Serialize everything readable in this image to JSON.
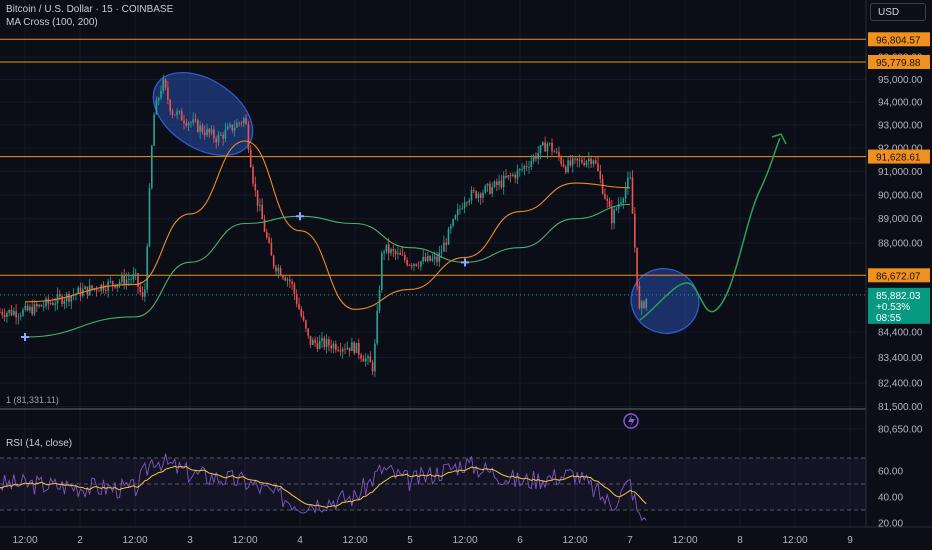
{
  "header": {
    "symbol_line": "Bitcoin / U.S. Dollar · 15 · COINBASE",
    "indicator_line": "MA Cross (100, 200)",
    "currency_button": "USD",
    "low_marker": "1 (81,331.11)",
    "rsi_label": "RSI (14, close)"
  },
  "colors": {
    "background": "#0b0e17",
    "up": "#26a69a",
    "down": "#ef5350",
    "level_line": "#f0901e",
    "ma100": "#f08a24",
    "ma200": "#4caf73",
    "rsi": "#7e57c2",
    "rsi_ma": "#f5c542",
    "ellipse": "#2f5cc9",
    "projection": "#2e9e5b",
    "price_tag": "#089981"
  },
  "chart_data": [
    {
      "type": "candlestick",
      "title": "Bitcoin / U.S. Dollar · 15 · COINBASE",
      "x_tick_labels": [
        "12:00",
        "2",
        "12:00",
        "3",
        "12:00",
        "4",
        "12:00",
        "5",
        "12:00",
        "6",
        "12:00",
        "7",
        "12:00",
        "8",
        "12:00",
        "9"
      ],
      "y_tick_labels": [
        "96,000.00",
        "95,000.00",
        "94,000.00",
        "93,000.00",
        "92,000.00",
        "91,000.00",
        "90,000.00",
        "89,000.00",
        "88,000.00",
        "84,400.00",
        "83,400.00",
        "82,400.00",
        "81,500.00",
        "80,650.00"
      ],
      "y_scale": "log",
      "ylim": [
        80650,
        97500
      ],
      "key_points": [
        {
          "x": "1 12:00",
          "y": 85200
        },
        {
          "x": "2",
          "y": 86000
        },
        {
          "x": "2 12:00",
          "y": 86600
        },
        {
          "x": "2 14:00",
          "y": 85500
        },
        {
          "x": "2 16:00",
          "y": 93300
        },
        {
          "x": "2 18:00",
          "y": 94900
        },
        {
          "x": "2 20:00",
          "y": 93600
        },
        {
          "x": "3 06:00",
          "y": 92400
        },
        {
          "x": "3 12:00",
          "y": 93300
        },
        {
          "x": "3 14:00",
          "y": 90300
        },
        {
          "x": "3 18:00",
          "y": 87200
        },
        {
          "x": "3 22:00",
          "y": 86400
        },
        {
          "x": "4 02:00",
          "y": 84000
        },
        {
          "x": "4 12:00",
          "y": 83800
        },
        {
          "x": "4 16:00",
          "y": 83000
        },
        {
          "x": "4 18:00",
          "y": 87800
        },
        {
          "x": "5",
          "y": 87200
        },
        {
          "x": "5 06:00",
          "y": 87300
        },
        {
          "x": "5 12:00",
          "y": 89900
        },
        {
          "x": "5 18:00",
          "y": 90300
        },
        {
          "x": "6",
          "y": 91000
        },
        {
          "x": "6 06:00",
          "y": 92200
        },
        {
          "x": "6 10:00",
          "y": 91200
        },
        {
          "x": "6 16:00",
          "y": 91600
        },
        {
          "x": "6 20:00",
          "y": 89000
        },
        {
          "x": "7",
          "y": 90700
        },
        {
          "x": "7 02:00",
          "y": 85200
        },
        {
          "x": "7 04:00",
          "y": 85882.03
        }
      ],
      "series": [
        {
          "name": "MA 100",
          "key_points": [
            {
              "x": "1 12:00",
              "y": 85600
            },
            {
              "x": "2 12:00",
              "y": 86300
            },
            {
              "x": "3",
              "y": 89200
            },
            {
              "x": "3 12:00",
              "y": 92300
            },
            {
              "x": "4",
              "y": 88500
            },
            {
              "x": "4 12:00",
              "y": 85300
            },
            {
              "x": "5",
              "y": 86100
            },
            {
              "x": "5 12:00",
              "y": 87400
            },
            {
              "x": "6",
              "y": 89300
            },
            {
              "x": "6 12:00",
              "y": 90500
            },
            {
              "x": "7",
              "y": 90300
            }
          ]
        },
        {
          "name": "MA 200",
          "key_points": [
            {
              "x": "1 12:00",
              "y": 84200
            },
            {
              "x": "2 12:00",
              "y": 85000
            },
            {
              "x": "3",
              "y": 87200
            },
            {
              "x": "3 12:00",
              "y": 88800
            },
            {
              "x": "4",
              "y": 89100
            },
            {
              "x": "4 12:00",
              "y": 88800
            },
            {
              "x": "5",
              "y": 87800
            },
            {
              "x": "5 12:00",
              "y": 87200
            },
            {
              "x": "6",
              "y": 87800
            },
            {
              "x": "6 12:00",
              "y": 89000
            },
            {
              "x": "7",
              "y": 89600
            }
          ]
        }
      ],
      "levels": [
        96804.57,
        95779.88,
        91628.61,
        86672.07
      ],
      "level_tags": [
        "96,804.57",
        "95,779.88",
        "91,628.61",
        "86,672.07"
      ],
      "last_price": {
        "price": "85,882.03",
        "change": "+0.53%",
        "countdown": "08:55"
      },
      "ma_cross_markers": [
        {
          "x": "1 12:00",
          "y": 84200
        },
        {
          "x": "4",
          "y": 89100
        },
        {
          "x": "5 12:00",
          "y": 87200
        }
      ]
    },
    {
      "type": "line",
      "title": "RSI (14, close)",
      "y_tick_labels": [
        "60.00",
        "40.00",
        "20.00"
      ],
      "band": [
        30,
        70
      ],
      "midline": 50,
      "key_points": [
        {
          "x": "1 12:00",
          "y": 50
        },
        {
          "x": "2 12:00",
          "y": 46
        },
        {
          "x": "2 16:00",
          "y": 70
        },
        {
          "x": "3",
          "y": 58
        },
        {
          "x": "3 12:00",
          "y": 52
        },
        {
          "x": "4",
          "y": 34
        },
        {
          "x": "4 12:00",
          "y": 40
        },
        {
          "x": "4 18:00",
          "y": 62
        },
        {
          "x": "5",
          "y": 52
        },
        {
          "x": "5 12:00",
          "y": 66
        },
        {
          "x": "6",
          "y": 52
        },
        {
          "x": "6 12:00",
          "y": 58
        },
        {
          "x": "6 20:00",
          "y": 34
        },
        {
          "x": "7",
          "y": 52
        },
        {
          "x": "7 02:00",
          "y": 24
        }
      ]
    }
  ]
}
